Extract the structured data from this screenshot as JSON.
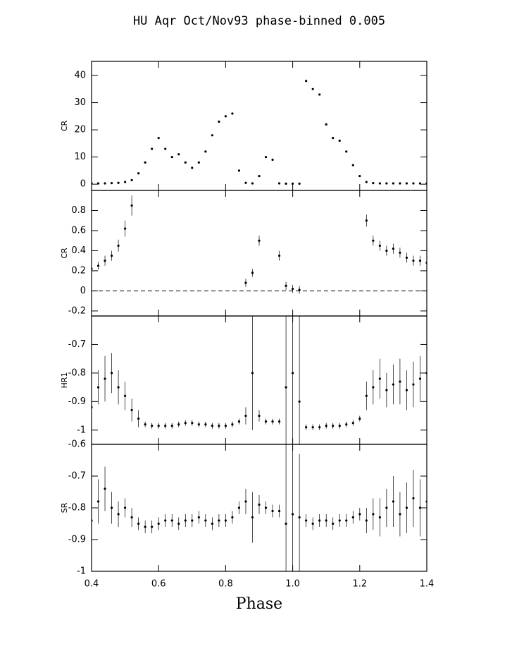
{
  "chart_data": [
    {
      "type": "scatter",
      "title": "HU Aqr Oct/Nov93 phase-binned 0.005",
      "ylabel": "CR",
      "x": [
        0.4,
        0.42,
        0.44,
        0.46,
        0.48,
        0.5,
        0.52,
        0.54,
        0.56,
        0.58,
        0.6,
        0.62,
        0.64,
        0.66,
        0.68,
        0.7,
        0.72,
        0.74,
        0.76,
        0.78,
        0.8,
        0.82,
        0.84,
        0.86,
        0.88,
        0.9,
        0.92,
        0.94,
        0.96,
        0.98,
        1.0,
        1.02,
        1.04,
        1.06,
        1.08,
        1.1,
        1.12,
        1.14,
        1.16,
        1.18,
        1.2,
        1.22,
        1.24,
        1.26,
        1.28,
        1.3,
        1.32,
        1.34,
        1.36,
        1.38,
        1.4
      ],
      "values": [
        0.3,
        0.3,
        0.3,
        0.4,
        0.5,
        0.8,
        1.5,
        4,
        8,
        13,
        17,
        13,
        10,
        11,
        8,
        6,
        8,
        12,
        18,
        23,
        25,
        26,
        5,
        0.5,
        0.3,
        3,
        10,
        9,
        0.3,
        0.2,
        0.2,
        0.2,
        38,
        35,
        33,
        22,
        17,
        16,
        12,
        7,
        3,
        0.8,
        0.4,
        0.3,
        0.3,
        0.3,
        0.3,
        0.3,
        0.3,
        0.3,
        0.3
      ],
      "color": "#000000",
      "ylim": [
        -2.3,
        45.2
      ],
      "yticks": [
        0,
        10,
        20,
        30,
        40
      ]
    },
    {
      "type": "scatter",
      "ylabel": "CR",
      "x": [
        0.4,
        0.42,
        0.44,
        0.46,
        0.48,
        0.5,
        0.52,
        0.54,
        0.56,
        0.58,
        0.6,
        0.62,
        0.64,
        0.66,
        0.68,
        0.7,
        0.72,
        0.74,
        0.76,
        0.78,
        0.8,
        0.82,
        0.84,
        0.86,
        0.88,
        0.9,
        0.92,
        0.94,
        0.96,
        0.98,
        1.0,
        1.02,
        1.04,
        1.06,
        1.08,
        1.1,
        1.12,
        1.14,
        1.16,
        1.18,
        1.2,
        1.22,
        1.24,
        1.26,
        1.28,
        1.3,
        1.32,
        1.34,
        1.36,
        1.38,
        1.4
      ],
      "values": [
        0.22,
        0.25,
        0.3,
        0.35,
        0.45,
        0.62,
        0.85,
        null,
        null,
        null,
        null,
        null,
        null,
        null,
        null,
        null,
        null,
        null,
        null,
        null,
        null,
        null,
        null,
        0.08,
        0.18,
        0.5,
        null,
        null,
        0.35,
        0.05,
        0.02,
        0.01,
        null,
        null,
        null,
        null,
        null,
        null,
        null,
        null,
        null,
        0.7,
        0.5,
        0.45,
        0.4,
        0.42,
        0.38,
        0.33,
        0.3,
        0.3,
        0.28
      ],
      "errors": [
        0.04,
        0.04,
        0.05,
        0.05,
        0.06,
        0.08,
        0.1,
        null,
        null,
        null,
        null,
        null,
        null,
        null,
        null,
        null,
        null,
        null,
        null,
        null,
        null,
        null,
        null,
        0.04,
        0.04,
        0.05,
        null,
        null,
        0.05,
        0.04,
        0.04,
        0.04,
        null,
        null,
        null,
        null,
        null,
        null,
        null,
        null,
        null,
        0.06,
        0.05,
        0.05,
        0.05,
        0.05,
        0.05,
        0.05,
        0.05,
        0.05,
        0.05
      ],
      "color": "#000000",
      "ylim": [
        -0.25,
        1.0
      ],
      "yticks": [
        -0.2,
        0,
        0.2,
        0.4,
        0.6,
        0.8
      ],
      "hline": 0
    },
    {
      "type": "scatter",
      "ylabel": "HR1",
      "x": [
        0.4,
        0.42,
        0.44,
        0.46,
        0.48,
        0.5,
        0.52,
        0.54,
        0.56,
        0.58,
        0.6,
        0.62,
        0.64,
        0.66,
        0.68,
        0.7,
        0.72,
        0.74,
        0.76,
        0.78,
        0.8,
        0.82,
        0.84,
        0.86,
        0.88,
        0.9,
        0.92,
        0.94,
        0.96,
        0.98,
        1.0,
        1.02,
        1.04,
        1.06,
        1.08,
        1.1,
        1.12,
        1.14,
        1.16,
        1.18,
        1.2,
        1.22,
        1.24,
        1.26,
        1.28,
        1.3,
        1.32,
        1.34,
        1.36,
        1.38,
        1.4
      ],
      "values": [
        -0.92,
        -0.85,
        -0.82,
        -0.8,
        -0.85,
        -0.88,
        -0.93,
        -0.96,
        -0.98,
        -0.985,
        -0.985,
        -0.985,
        -0.985,
        -0.98,
        -0.975,
        -0.975,
        -0.98,
        -0.98,
        -0.985,
        -0.985,
        -0.985,
        -0.98,
        -0.97,
        -0.95,
        -0.8,
        -0.95,
        -0.97,
        -0.97,
        -0.97,
        -0.85,
        -0.8,
        -0.9,
        -0.99,
        -0.99,
        -0.99,
        -0.985,
        -0.985,
        -0.985,
        -0.98,
        -0.975,
        -0.96,
        -0.88,
        -0.85,
        -0.82,
        -0.86,
        -0.84,
        -0.83,
        -0.86,
        -0.84,
        -0.82,
        -0.8
      ],
      "errors": [
        0.05,
        0.06,
        0.08,
        0.07,
        0.06,
        0.05,
        0.04,
        0.03,
        0.01,
        0.01,
        0.01,
        0.01,
        0.01,
        0.01,
        0.01,
        0.01,
        0.01,
        0.01,
        0.01,
        0.01,
        0.01,
        0.01,
        0.01,
        0.03,
        0.2,
        0.02,
        0.01,
        0.01,
        0.01,
        0.3,
        0.3,
        0.3,
        0.01,
        0.01,
        0.01,
        0.01,
        0.01,
        0.01,
        0.01,
        0.01,
        0.01,
        0.05,
        0.06,
        0.07,
        0.06,
        0.07,
        0.08,
        0.07,
        0.08,
        0.08,
        0.08
      ],
      "color": "#000000",
      "ylim": [
        -1.05,
        -0.6
      ],
      "yticks": [
        -1,
        -0.9,
        -0.8,
        -0.7
      ]
    },
    {
      "type": "scatter",
      "ylabel": "SR",
      "xlabel": "Phase",
      "x": [
        0.4,
        0.42,
        0.44,
        0.46,
        0.48,
        0.5,
        0.52,
        0.54,
        0.56,
        0.58,
        0.6,
        0.62,
        0.64,
        0.66,
        0.68,
        0.7,
        0.72,
        0.74,
        0.76,
        0.78,
        0.8,
        0.82,
        0.84,
        0.86,
        0.88,
        0.9,
        0.92,
        0.94,
        0.96,
        0.98,
        1.0,
        1.02,
        1.04,
        1.06,
        1.08,
        1.1,
        1.12,
        1.14,
        1.16,
        1.18,
        1.2,
        1.22,
        1.24,
        1.26,
        1.28,
        1.3,
        1.32,
        1.34,
        1.36,
        1.38,
        1.4
      ],
      "values": [
        -0.84,
        -0.78,
        -0.74,
        -0.8,
        -0.82,
        -0.8,
        -0.83,
        -0.85,
        -0.86,
        -0.86,
        -0.85,
        -0.84,
        -0.84,
        -0.85,
        -0.84,
        -0.84,
        -0.83,
        -0.84,
        -0.85,
        -0.84,
        -0.84,
        -0.83,
        -0.8,
        -0.78,
        -0.83,
        -0.79,
        -0.8,
        -0.81,
        -0.81,
        -0.85,
        -0.82,
        -0.83,
        -0.84,
        -0.85,
        -0.84,
        -0.84,
        -0.85,
        -0.84,
        -0.84,
        -0.83,
        -0.82,
        -0.84,
        -0.82,
        -0.83,
        -0.8,
        -0.78,
        -0.82,
        -0.8,
        -0.77,
        -0.8,
        -0.78
      ],
      "errors": [
        0.08,
        0.07,
        0.07,
        0.05,
        0.04,
        0.03,
        0.03,
        0.02,
        0.02,
        0.02,
        0.02,
        0.02,
        0.02,
        0.02,
        0.02,
        0.02,
        0.02,
        0.02,
        0.02,
        0.02,
        0.02,
        0.02,
        0.02,
        0.04,
        0.08,
        0.03,
        0.02,
        0.02,
        0.02,
        0.3,
        0.3,
        0.2,
        0.02,
        0.02,
        0.02,
        0.02,
        0.02,
        0.02,
        0.02,
        0.02,
        0.02,
        0.04,
        0.05,
        0.06,
        0.06,
        0.08,
        0.07,
        0.08,
        0.09,
        0.09,
        0.08
      ],
      "color": "#000000",
      "ylim": [
        -1,
        -0.6
      ],
      "yticks": [
        -1,
        -0.9,
        -0.8,
        -0.7,
        -0.6
      ],
      "xlim": [
        0.4,
        1.4
      ],
      "xticks": [
        0.4,
        0.6,
        0.8,
        {
          "value": 1,
          "label": "1.0"
        },
        1.2,
        1.4
      ]
    }
  ]
}
